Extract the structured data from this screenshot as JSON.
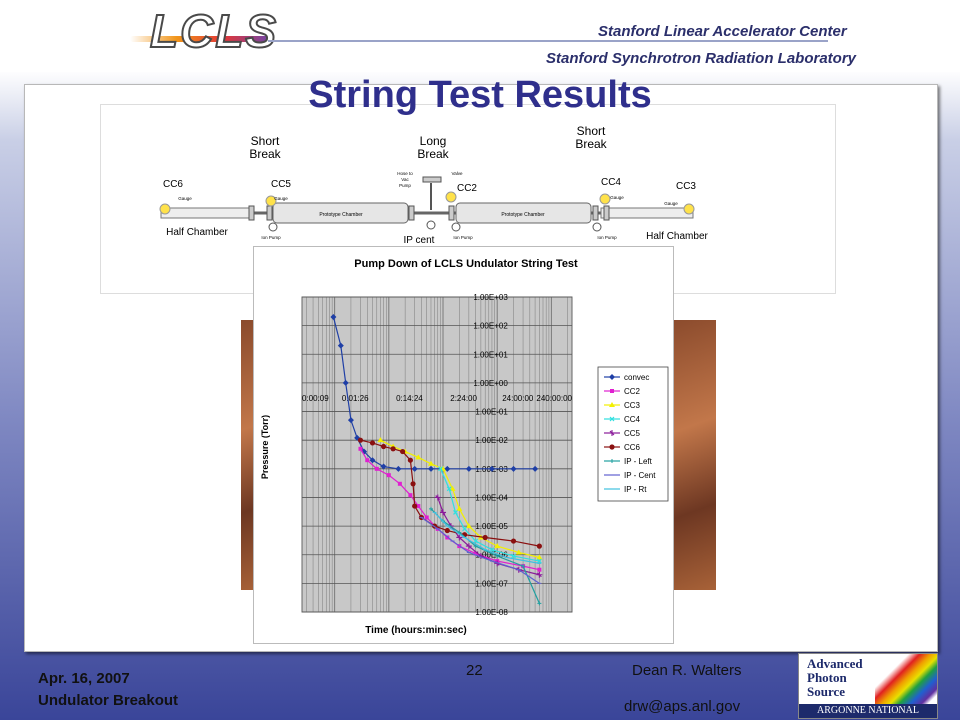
{
  "header": {
    "logo_text": "LCLS",
    "org_line1": "Stanford Linear Accelerator Center",
    "org_line2": "Stanford Synchrotron Radiation Laboratory"
  },
  "slide": {
    "title": "String Test Results"
  },
  "schematic": {
    "labels": {
      "short_break_left": [
        "Short",
        "Break"
      ],
      "long_break": [
        "Long",
        "Break"
      ],
      "short_break_right": [
        "Short",
        "Break"
      ],
      "cc6": "CC6",
      "cc5": "CC5",
      "cc2": "CC2",
      "cc4": "CC4",
      "cc3": "CC3",
      "half_chamber_left": "Half Chamber",
      "half_chamber_right": "Half Chamber",
      "ip_cent": "IP cent",
      "prototype_chamber": "Prototype Chamber",
      "gauge": "Gauge",
      "ion_pump": "Ion Pump",
      "hose": [
        "Hose to",
        "Vac",
        "Pump"
      ],
      "valve": "Valve"
    }
  },
  "chart_data": {
    "type": "line",
    "title": "Pump Down of LCLS Undulator String Test",
    "xlabel": "Time (hours:min:sec)",
    "ylabel": "Pressure (Torr)",
    "x_scale": "log",
    "y_scale": "log",
    "x_ticks": [
      "0:00:09",
      "0:01:26",
      "0:14:24",
      "2:24:00",
      "24:00:00",
      "240:00:00"
    ],
    "y_ticks": [
      "1.00E+03",
      "1.00E+02",
      "1.00E+01",
      "1.00E+00",
      "1.00E-01",
      "1.00E-02",
      "1.00E-03",
      "1.00E-04",
      "1.00E-05",
      "1.00E-06",
      "1.00E-07",
      "1.00E-08"
    ],
    "grid": true,
    "legend": "right",
    "series": [
      {
        "name": "convec",
        "color": "#1f3fa6",
        "marker": "diamond",
        "points": [
          [
            0.0095,
            200
          ],
          [
            0.013,
            20
          ],
          [
            0.016,
            1
          ],
          [
            0.02,
            0.05
          ],
          [
            0.026,
            0.012
          ],
          [
            0.035,
            0.004
          ],
          [
            0.05,
            0.002
          ],
          [
            0.08,
            0.0012
          ],
          [
            0.15,
            0.001
          ],
          [
            0.3,
            0.001
          ],
          [
            0.6,
            0.001
          ],
          [
            1.2,
            0.001
          ],
          [
            3,
            0.001
          ],
          [
            8,
            0.001
          ],
          [
            20,
            0.001
          ],
          [
            50,
            0.001
          ]
        ]
      },
      {
        "name": "CC2",
        "color": "#e020d0",
        "marker": "square",
        "points": [
          [
            0.03,
            0.005
          ],
          [
            0.04,
            0.002
          ],
          [
            0.06,
            0.001
          ],
          [
            0.1,
            0.0006
          ],
          [
            0.16,
            0.0003
          ],
          [
            0.25,
            0.00012
          ],
          [
            0.35,
            5e-05
          ],
          [
            0.5,
            2e-05
          ],
          [
            0.8,
            8e-06
          ],
          [
            1.2,
            4e-06
          ],
          [
            2,
            2e-06
          ],
          [
            4,
            1.1e-06
          ],
          [
            10,
            6e-07
          ],
          [
            30,
            4e-07
          ],
          [
            60,
            3e-07
          ]
        ]
      },
      {
        "name": "CC3",
        "color": "#f2f000",
        "marker": "triangle",
        "points": [
          [
            0.07,
            0.01
          ],
          [
            0.12,
            0.006
          ],
          [
            0.2,
            0.004
          ],
          [
            0.35,
            0.0025
          ],
          [
            0.6,
            0.0015
          ],
          [
            1,
            0.001
          ],
          [
            1.5,
            0.0002
          ],
          [
            2,
            4e-05
          ],
          [
            3,
            1e-05
          ],
          [
            5,
            4e-06
          ],
          [
            10,
            2e-06
          ],
          [
            25,
            1.2e-06
          ],
          [
            60,
            8e-07
          ]
        ]
      },
      {
        "name": "CC4",
        "color": "#30e0e0",
        "marker": "x",
        "points": [
          [
            0.9,
            0.001
          ],
          [
            1.3,
            0.0002
          ],
          [
            1.7,
            3e-05
          ],
          [
            2.5,
            8e-06
          ],
          [
            4,
            3e-06
          ],
          [
            8,
            1.5e-06
          ],
          [
            20,
            9e-07
          ],
          [
            60,
            6e-07
          ]
        ]
      },
      {
        "name": "CC5",
        "color": "#8a1a9a",
        "marker": "star",
        "points": [
          [
            0.8,
            0.0001
          ],
          [
            1,
            3e-05
          ],
          [
            1.4,
            1e-05
          ],
          [
            2,
            4e-06
          ],
          [
            3,
            2e-06
          ],
          [
            5,
            9e-07
          ],
          [
            10,
            5e-07
          ],
          [
            25,
            3e-07
          ],
          [
            60,
            2e-07
          ]
        ]
      },
      {
        "name": "CC6",
        "color": "#8a1010",
        "marker": "circle",
        "points": [
          [
            0.03,
            0.01
          ],
          [
            0.05,
            0.008
          ],
          [
            0.08,
            0.006
          ],
          [
            0.12,
            0.005
          ],
          [
            0.18,
            0.004
          ],
          [
            0.25,
            0.002
          ],
          [
            0.28,
            0.0003
          ],
          [
            0.3,
            5e-05
          ],
          [
            0.4,
            2e-05
          ],
          [
            0.7,
            1e-05
          ],
          [
            1.2,
            7e-06
          ],
          [
            2.5,
            5e-06
          ],
          [
            6,
            4e-06
          ],
          [
            20,
            3e-06
          ],
          [
            60,
            2e-06
          ]
        ]
      },
      {
        "name": "IP - Left",
        "color": "#20a0a0",
        "marker": "plus",
        "points": [
          [
            0.6,
            4e-05
          ],
          [
            1,
            1.5e-05
          ],
          [
            2,
            6e-06
          ],
          [
            4,
            2e-06
          ],
          [
            10,
            9e-07
          ],
          [
            30,
            4e-07
          ],
          [
            60,
            2e-08
          ]
        ]
      },
      {
        "name": "IP - Cent",
        "color": "#6060d0",
        "marker": "dash",
        "points": [
          [
            0.4,
            2e-05
          ],
          [
            0.8,
            8e-06
          ],
          [
            1.5,
            3e-06
          ],
          [
            3,
            1.2e-06
          ],
          [
            8,
            6e-07
          ],
          [
            25,
            3e-07
          ],
          [
            60,
            1e-07
          ]
        ]
      },
      {
        "name": "IP - Rt",
        "color": "#40c0e0",
        "marker": "dash",
        "points": [
          [
            0.7,
            3e-05
          ],
          [
            1.2,
            1e-05
          ],
          [
            2.5,
            4e-06
          ],
          [
            6,
            1.5e-06
          ],
          [
            15,
            8e-07
          ],
          [
            60,
            5e-07
          ]
        ]
      }
    ]
  },
  "footer": {
    "date": "Apr. 16, 2007",
    "event": "Undulator Breakout",
    "page": "22",
    "author": "Dean R. Walters",
    "email": "drw@aps.anl.gov"
  },
  "aps_logo": {
    "line1": "Advanced",
    "line2": "Photon",
    "line3": "Source",
    "lab": "ARGONNE NATIONAL LABORATORY"
  }
}
